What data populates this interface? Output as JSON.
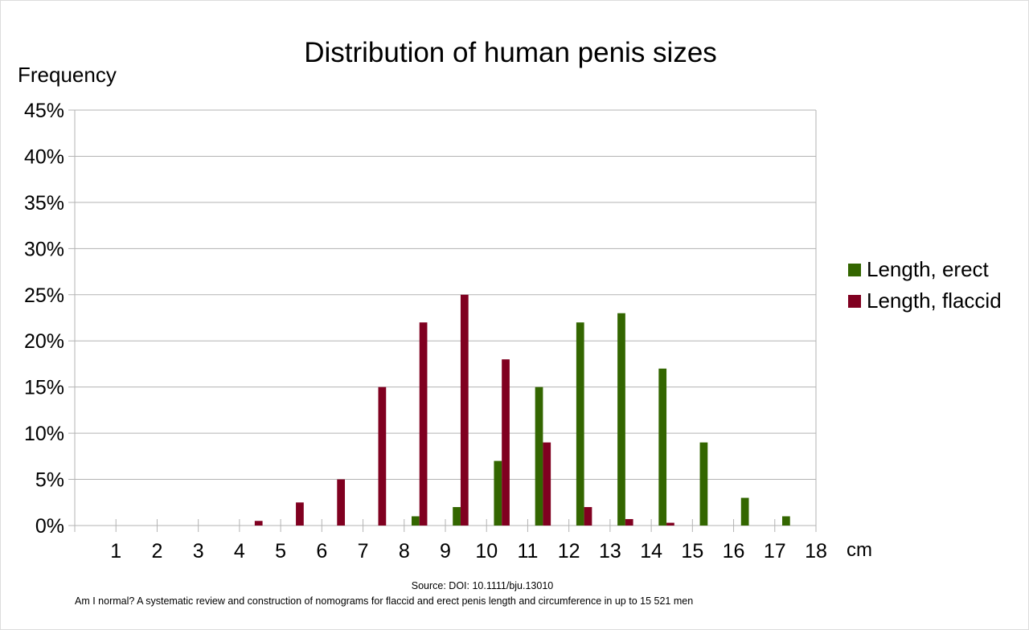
{
  "chart_data": {
    "type": "bar",
    "title": "Distribution of human penis sizes",
    "ylabel": "Frequency",
    "xlabel": "cm",
    "bins": [
      0,
      1,
      2,
      3,
      4,
      5,
      6,
      7,
      8,
      9,
      10,
      11,
      12,
      13,
      14,
      15,
      16,
      17
    ],
    "x_ticks": [
      "1",
      "2",
      "3",
      "4",
      "5",
      "6",
      "7",
      "8",
      "9",
      "10",
      "11",
      "12",
      "13",
      "14",
      "15",
      "16",
      "17",
      "18"
    ],
    "xlim": [
      0,
      18
    ],
    "ylim": [
      0,
      45
    ],
    "y_ticks": [
      "0%",
      "5%",
      "10%",
      "15%",
      "20%",
      "25%",
      "30%",
      "35%",
      "40%",
      "45%"
    ],
    "grid": "horizontal",
    "legend_position": "right",
    "series": [
      {
        "name": "Length, erect",
        "color": "#336600",
        "values": [
          0,
          0,
          0,
          0,
          0,
          0,
          0,
          0,
          1,
          2,
          7,
          15,
          22,
          23,
          17,
          9,
          3,
          1
        ]
      },
      {
        "name": "Length, flaccid",
        "color": "#800020",
        "values": [
          0,
          0,
          0,
          0,
          0.5,
          2.5,
          5,
          15,
          22,
          25,
          18,
          9,
          2,
          0.7,
          0.3,
          0,
          0,
          0
        ]
      }
    ]
  },
  "footer": {
    "source": "Source: DOI: 10.1111/bju.13010",
    "citation": "Am I normal? A systematic review and construction of nomograms for flaccid and erect penis length and circumference in up to 15 521 men"
  }
}
